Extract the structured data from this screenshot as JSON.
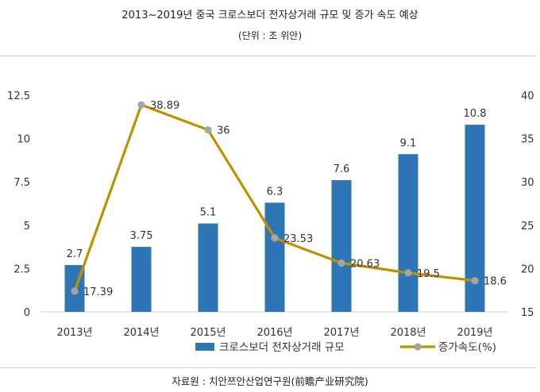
{
  "header": {
    "title": "2013~2019년 중국 크로스보더 전자상거래 규모 및 증가 속도 예상",
    "subtitle": "(단위 : 조 위안)"
  },
  "footer": {
    "source": "자료원 : 치안쯔안산업연구원(前瞻产业研究院)"
  },
  "chart_data": {
    "type": "bar",
    "categories": [
      "2013년",
      "2014년",
      "2015년",
      "2016년",
      "2017년",
      "2018년",
      "2019년"
    ],
    "series": [
      {
        "name": "크로스보더 전자상거래 규모",
        "type": "bar",
        "axis": "left",
        "values": [
          2.7,
          3.75,
          5.1,
          6.3,
          7.6,
          9.1,
          10.8
        ],
        "labels": [
          "2.7",
          "3.75",
          "5.1",
          "6.3",
          "7.6",
          "9.1",
          "10.8"
        ],
        "color": "#2E75B6"
      },
      {
        "name": "증가속도(%)",
        "type": "line",
        "axis": "right",
        "values": [
          17.39,
          38.89,
          36,
          23.53,
          20.63,
          19.5,
          18.6
        ],
        "labels": [
          "17.39",
          "38.89",
          "36",
          "23.53",
          "20.63",
          "19.5",
          "18.6"
        ],
        "color": "#BF9000",
        "marker_color": "#A5A5A5"
      }
    ],
    "y_left": {
      "min": 0,
      "max": 12.5,
      "ticks": [
        "0",
        "2.5",
        "5",
        "7.5",
        "10",
        "12.5"
      ]
    },
    "y_right": {
      "min": 15,
      "max": 40,
      "ticks": [
        "15",
        "20",
        "25",
        "30",
        "35",
        "40"
      ]
    },
    "legend_position": "bottom",
    "grid": false
  }
}
